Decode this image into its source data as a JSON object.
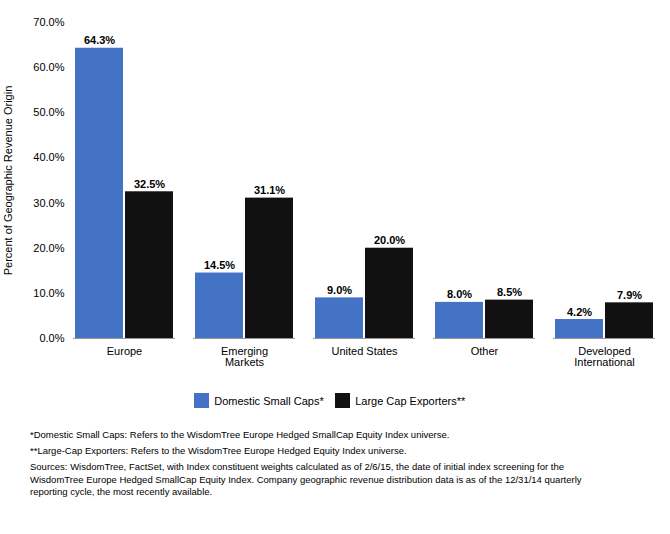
{
  "chart_data": {
    "type": "bar",
    "categories": [
      "Europe",
      "Emerging\nMarkets",
      "United States",
      "Other",
      "Developed\nInternational"
    ],
    "series": [
      {
        "name": "Domestic Small Caps*",
        "color": "#4472C4",
        "values": [
          64.3,
          14.5,
          9.0,
          8.0,
          4.2
        ],
        "value_labels": [
          "64.3%",
          "14.5%",
          "9.0%",
          "8.0%",
          "4.2%"
        ]
      },
      {
        "name": "Large Cap Exporters**",
        "color": "#111111",
        "values": [
          32.5,
          31.1,
          20.0,
          8.5,
          7.9
        ],
        "value_labels": [
          "32.5%",
          "31.1%",
          "20.0%",
          "8.5%",
          "7.9%"
        ]
      }
    ],
    "ylabel": "Percent of Geographic Revenue Origin",
    "ylim": [
      0,
      70
    ],
    "yticks": [
      {
        "value": 0,
        "label": "0.0%"
      },
      {
        "value": 10,
        "label": "10.0%"
      },
      {
        "value": 20,
        "label": "20.0%"
      },
      {
        "value": 30,
        "label": "30.0%"
      },
      {
        "value": 40,
        "label": "40.0%"
      },
      {
        "value": 50,
        "label": "50.0%"
      },
      {
        "value": 60,
        "label": "60.0%"
      },
      {
        "value": 70,
        "label": "70.0%"
      }
    ],
    "data_labels": true,
    "grid": false,
    "legend": "bottom",
    "annotations": [
      "*Domestic Small Caps: Refers to the WisdomTree Europe Hedged SmallCap Equity Index universe.",
      "**Large-Cap Exporters: Refers to the WisdomTree Europe Hedged Equity Index universe.",
      "Sources: WisdomTree, FactSet, with Index constituent weights calculated as of 2/6/15, the date of initial index screening for the\nWisdomTree Europe Hedged SmallCap Equity Index. Company geographic revenue distribution data is as of the 12/31/14 quarterly\nreporting cycle, the most recently available."
    ]
  }
}
